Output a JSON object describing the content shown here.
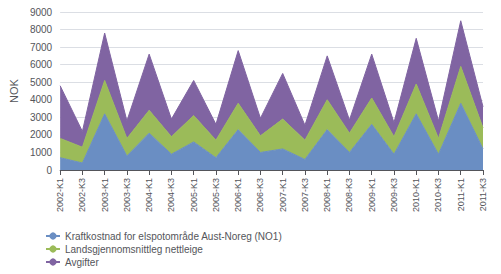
{
  "chart_data": {
    "type": "area",
    "stacked": true,
    "ylabel": "NOK",
    "categories": [
      "2002-K1",
      "2002-K3",
      "2003-K1",
      "2003-K3",
      "2004-K1",
      "2004-K3",
      "2005-K1",
      "2005-K3",
      "2006-K1",
      "2006-K3",
      "2007-K1",
      "2007-K3",
      "2008-K1",
      "2008-K3",
      "2009-K1",
      "2009-K3",
      "2010-K1",
      "2010-K3",
      "2011-K1",
      "2011-K3"
    ],
    "series": [
      {
        "name": "Kraftkostnad for elspotområde Aust-Noreg (NO1)",
        "color": "#6A8EC3",
        "values": [
          700,
          400,
          3200,
          800,
          2100,
          900,
          1600,
          700,
          2300,
          1000,
          1200,
          600,
          2300,
          1000,
          2600,
          900,
          3200,
          900,
          3800,
          1200
        ]
      },
      {
        "name": "Landsgjennomsnittleg nettleige",
        "color": "#9BBB59",
        "values": [
          1100,
          900,
          1900,
          1000,
          1300,
          1000,
          1500,
          1000,
          1500,
          950,
          1700,
          1100,
          1700,
          1100,
          1500,
          1000,
          1700,
          900,
          2100,
          1200
        ]
      },
      {
        "name": "Avgifter",
        "color": "#8064A2",
        "values": [
          3000,
          900,
          2700,
          1000,
          3200,
          1000,
          2000,
          900,
          3000,
          1000,
          2600,
          850,
          2500,
          750,
          2500,
          800,
          2600,
          1000,
          2600,
          1200
        ]
      }
    ],
    "ylim": [
      0,
      9000
    ],
    "yticks": [
      0,
      1000,
      2000,
      3000,
      4000,
      5000,
      6000,
      7000,
      8000,
      9000
    ],
    "grid": true,
    "legend": "lower left"
  }
}
